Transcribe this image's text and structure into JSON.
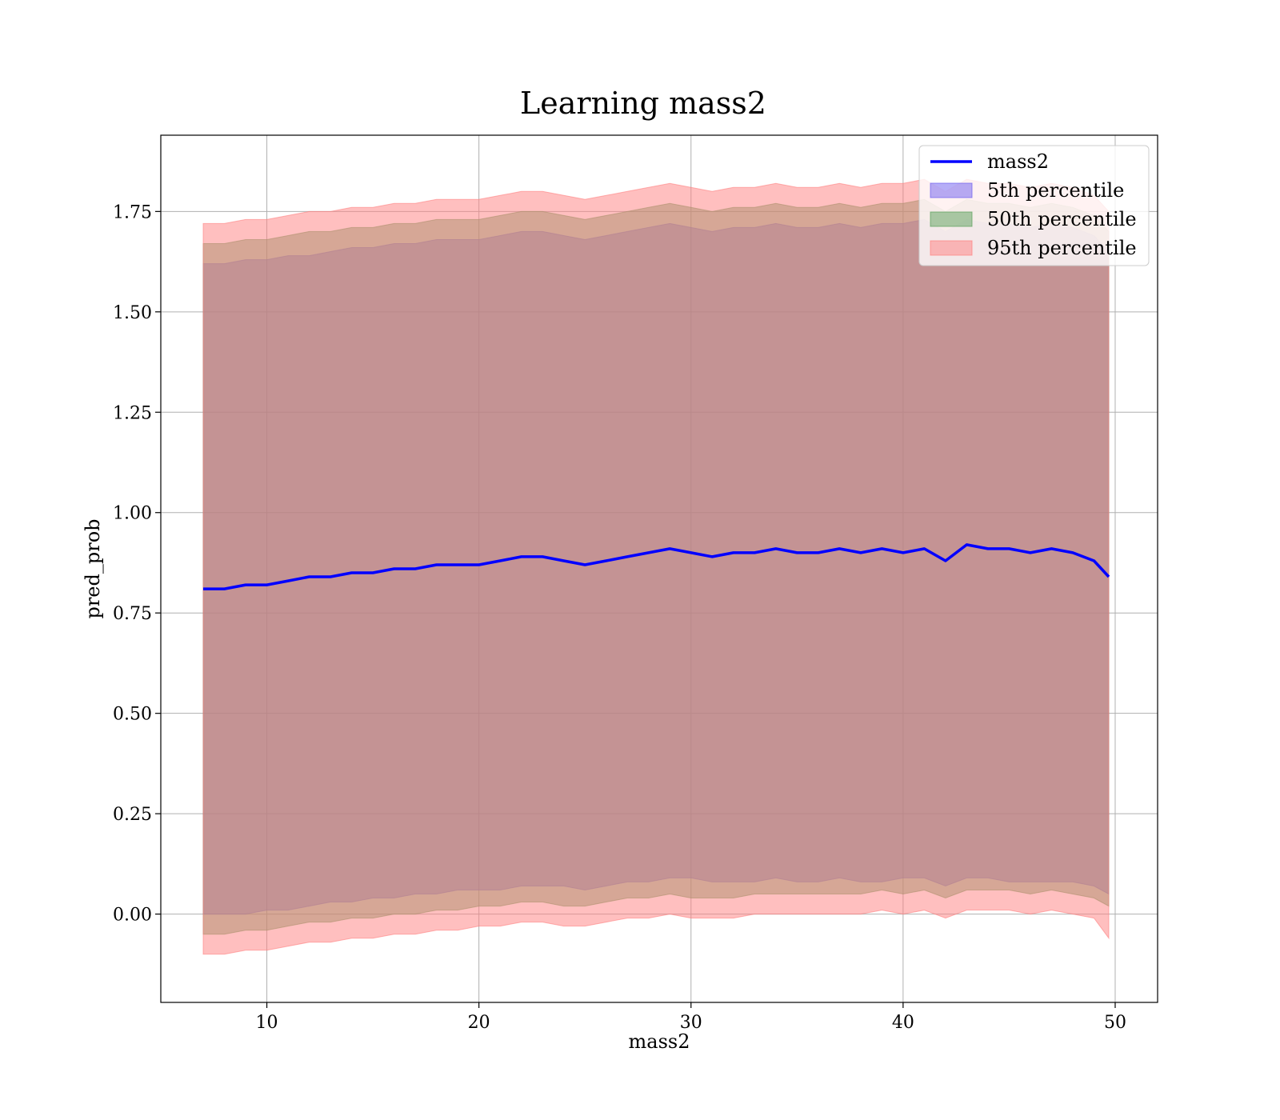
{
  "chart_data": {
    "type": "line",
    "title": "Learning mass2",
    "xlabel": "mass2",
    "ylabel": "pred_prob",
    "xlim": [
      5,
      52
    ],
    "ylim": [
      -0.22,
      1.94
    ],
    "xticks": [
      10,
      20,
      30,
      40,
      50
    ],
    "xtick_labels": [
      "10",
      "20",
      "30",
      "40",
      "50"
    ],
    "yticks": [
      0.0,
      0.25,
      0.5,
      0.75,
      1.0,
      1.25,
      1.5,
      1.75
    ],
    "ytick_labels": [
      "0.00",
      "0.25",
      "0.50",
      "0.75",
      "1.00",
      "1.25",
      "1.50",
      "1.75"
    ],
    "grid": true,
    "legend_position": "top-right",
    "x": [
      7,
      8,
      9,
      10,
      11,
      12,
      13,
      14,
      15,
      16,
      17,
      18,
      19,
      20,
      21,
      22,
      23,
      24,
      25,
      26,
      27,
      28,
      29,
      30,
      31,
      32,
      33,
      34,
      35,
      36,
      37,
      38,
      39,
      40,
      41,
      42,
      43,
      44,
      45,
      46,
      47,
      48,
      49,
      49.7
    ],
    "series": [
      {
        "name": "mass2",
        "kind": "line",
        "color": "#0000ff",
        "values": [
          0.81,
          0.81,
          0.82,
          0.82,
          0.83,
          0.84,
          0.84,
          0.85,
          0.85,
          0.86,
          0.86,
          0.87,
          0.87,
          0.87,
          0.88,
          0.89,
          0.89,
          0.88,
          0.87,
          0.88,
          0.89,
          0.9,
          0.91,
          0.9,
          0.89,
          0.9,
          0.9,
          0.91,
          0.9,
          0.9,
          0.91,
          0.9,
          0.91,
          0.9,
          0.91,
          0.88,
          0.92,
          0.91,
          0.91,
          0.9,
          0.91,
          0.9,
          0.88,
          0.84
        ]
      },
      {
        "name": "5th percentile",
        "kind": "band",
        "color": "#6e5ef0",
        "lower": [
          0.0,
          0.0,
          0.0,
          0.01,
          0.01,
          0.02,
          0.03,
          0.03,
          0.04,
          0.04,
          0.05,
          0.05,
          0.06,
          0.06,
          0.06,
          0.07,
          0.07,
          0.07,
          0.06,
          0.07,
          0.08,
          0.08,
          0.09,
          0.09,
          0.08,
          0.08,
          0.08,
          0.09,
          0.08,
          0.08,
          0.09,
          0.08,
          0.08,
          0.09,
          0.09,
          0.07,
          0.09,
          0.09,
          0.08,
          0.08,
          0.08,
          0.08,
          0.07,
          0.05
        ],
        "upper": [
          1.62,
          1.62,
          1.63,
          1.63,
          1.64,
          1.64,
          1.65,
          1.66,
          1.66,
          1.67,
          1.67,
          1.68,
          1.68,
          1.68,
          1.69,
          1.7,
          1.7,
          1.69,
          1.68,
          1.69,
          1.7,
          1.71,
          1.72,
          1.71,
          1.7,
          1.71,
          1.71,
          1.72,
          1.71,
          1.71,
          1.72,
          1.71,
          1.72,
          1.72,
          1.73,
          1.7,
          1.73,
          1.72,
          1.72,
          1.71,
          1.72,
          1.71,
          1.69,
          1.65
        ]
      },
      {
        "name": "50th percentile",
        "kind": "band",
        "color": "#5aa05a",
        "lower": [
          -0.05,
          -0.05,
          -0.04,
          -0.04,
          -0.03,
          -0.02,
          -0.02,
          -0.01,
          -0.01,
          0.0,
          0.0,
          0.01,
          0.01,
          0.02,
          0.02,
          0.03,
          0.03,
          0.02,
          0.02,
          0.03,
          0.04,
          0.04,
          0.05,
          0.04,
          0.04,
          0.04,
          0.05,
          0.05,
          0.05,
          0.05,
          0.05,
          0.05,
          0.06,
          0.05,
          0.06,
          0.04,
          0.06,
          0.06,
          0.06,
          0.05,
          0.06,
          0.05,
          0.04,
          0.02
        ],
        "upper": [
          1.67,
          1.67,
          1.68,
          1.68,
          1.69,
          1.7,
          1.7,
          1.71,
          1.71,
          1.72,
          1.72,
          1.73,
          1.73,
          1.73,
          1.74,
          1.75,
          1.75,
          1.74,
          1.73,
          1.74,
          1.75,
          1.76,
          1.77,
          1.76,
          1.75,
          1.76,
          1.76,
          1.77,
          1.76,
          1.76,
          1.77,
          1.76,
          1.77,
          1.77,
          1.78,
          1.75,
          1.78,
          1.77,
          1.77,
          1.76,
          1.77,
          1.76,
          1.74,
          1.7
        ]
      },
      {
        "name": "95th percentile",
        "kind": "band",
        "color": "#ff7f7f",
        "lower": [
          -0.1,
          -0.1,
          -0.09,
          -0.09,
          -0.08,
          -0.07,
          -0.07,
          -0.06,
          -0.06,
          -0.05,
          -0.05,
          -0.04,
          -0.04,
          -0.03,
          -0.03,
          -0.02,
          -0.02,
          -0.03,
          -0.03,
          -0.02,
          -0.01,
          -0.01,
          0.0,
          -0.01,
          -0.01,
          -0.01,
          0.0,
          0.0,
          0.0,
          0.0,
          0.0,
          0.0,
          0.01,
          0.0,
          0.01,
          -0.01,
          0.01,
          0.01,
          0.01,
          0.0,
          0.01,
          0.0,
          -0.01,
          -0.06
        ],
        "upper": [
          1.72,
          1.72,
          1.73,
          1.73,
          1.74,
          1.75,
          1.75,
          1.76,
          1.76,
          1.77,
          1.77,
          1.78,
          1.78,
          1.78,
          1.79,
          1.8,
          1.8,
          1.79,
          1.78,
          1.79,
          1.8,
          1.81,
          1.82,
          1.81,
          1.8,
          1.81,
          1.81,
          1.82,
          1.81,
          1.81,
          1.82,
          1.81,
          1.82,
          1.82,
          1.83,
          1.8,
          1.83,
          1.82,
          1.82,
          1.81,
          1.82,
          1.81,
          1.79,
          1.75
        ]
      }
    ]
  }
}
